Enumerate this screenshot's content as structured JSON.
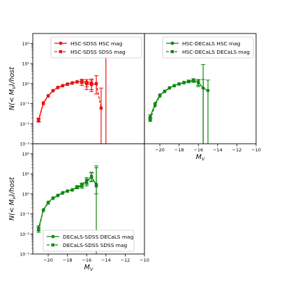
{
  "chart_data": [
    {
      "type": "line",
      "panel": "top-left",
      "xlabel": "",
      "ylabel": "N(< M_V)/host",
      "xlim": [
        -21.6,
        -10
      ],
      "ylim_log10": [
        -3,
        2.5
      ],
      "yscale": "log",
      "y_tick_labels": [
        "10⁻³",
        "10⁻²",
        "10⁻¹",
        "10⁰",
        "10¹",
        "10²"
      ],
      "x_tick_labels": [],
      "legend_position": "top-right",
      "series": [
        {
          "name": "HSC-SDSS HSC mag",
          "color": "#ee1111",
          "dash": "solid",
          "marker": "circle",
          "points": [
            {
              "x": -21.0,
              "y": 0.016,
              "lo": 0.013,
              "hi": 0.019
            },
            {
              "x": -20.5,
              "y": 0.11
            },
            {
              "x": -20.0,
              "y": 0.25
            },
            {
              "x": -19.5,
              "y": 0.45
            },
            {
              "x": -19.0,
              "y": 0.65
            },
            {
              "x": -18.5,
              "y": 0.8
            },
            {
              "x": -18.0,
              "y": 0.95
            },
            {
              "x": -17.5,
              "y": 1.1
            },
            {
              "x": -17.0,
              "y": 1.25
            },
            {
              "x": -16.5,
              "y": 1.3,
              "lo": 1.0,
              "hi": 1.65
            },
            {
              "x": -16.0,
              "y": 1.2,
              "lo": 0.7,
              "hi": 1.6
            },
            {
              "x": -15.5,
              "y": 1.1,
              "lo": 0.5,
              "hi": 1.7
            }
          ]
        },
        {
          "name": "HSC-SDSS SDSS mag",
          "color": "#ee1111",
          "dash": "dashed",
          "marker": "square",
          "points": [
            {
              "x": -21.0,
              "y": 0.014,
              "lo": 0.012,
              "hi": 0.018
            },
            {
              "x": -20.5,
              "y": 0.1
            },
            {
              "x": -20.0,
              "y": 0.24
            },
            {
              "x": -19.5,
              "y": 0.44
            },
            {
              "x": -19.0,
              "y": 0.63
            },
            {
              "x": -18.5,
              "y": 0.78
            },
            {
              "x": -18.0,
              "y": 0.92
            },
            {
              "x": -17.5,
              "y": 1.05
            },
            {
              "x": -17.0,
              "y": 1.2
            },
            {
              "x": -16.5,
              "y": 1.15,
              "lo": 0.8,
              "hi": 1.5
            },
            {
              "x": -16.0,
              "y": 1.0,
              "lo": 0.5,
              "hi": 1.6
            },
            {
              "x": -15.5,
              "y": 0.9,
              "lo": 0.4,
              "hi": 1.5
            },
            {
              "x": -15.0,
              "y": 1.0,
              "lo": 0.3,
              "hi": 2.5
            },
            {
              "x": -14.5,
              "y": 0.06,
              "lo": 0.001,
              "hi": 0.6
            },
            {
              "x": -14.0,
              "y": 0.001,
              "lo": 0.001,
              "hi": 60
            }
          ]
        }
      ]
    },
    {
      "type": "line",
      "panel": "top-right",
      "xlabel": "M_V",
      "ylabel": "",
      "xlim": [
        -21.6,
        -10
      ],
      "ylim_log10": [
        -3,
        2.5
      ],
      "yscale": "log",
      "x_tick_labels": [
        "−20",
        "−18",
        "−16",
        "−14",
        "−12",
        "−10"
      ],
      "x_ticks": [
        -20,
        -18,
        -16,
        -14,
        -12,
        -10
      ],
      "legend_position": "top-right",
      "series": [
        {
          "name": "HSC-DECaLS HSC mag",
          "color": "#118811",
          "dash": "solid",
          "marker": "circle",
          "points": [
            {
              "x": -21.0,
              "y": 0.022,
              "lo": 0.017,
              "hi": 0.028
            },
            {
              "x": -20.5,
              "y": 0.1
            },
            {
              "x": -20.0,
              "y": 0.27
            },
            {
              "x": -19.5,
              "y": 0.42
            },
            {
              "x": -19.0,
              "y": 0.62
            },
            {
              "x": -18.5,
              "y": 0.8
            },
            {
              "x": -18.0,
              "y": 0.97
            },
            {
              "x": -17.5,
              "y": 1.15
            },
            {
              "x": -17.0,
              "y": 1.3,
              "lo": 1.15,
              "hi": 1.5
            },
            {
              "x": -16.5,
              "y": 1.45,
              "lo": 1.2,
              "hi": 1.75
            },
            {
              "x": -16.0,
              "y": 1.2,
              "lo": 0.8,
              "hi": 1.6
            },
            {
              "x": -15.5,
              "y": 0.6,
              "lo": 0.001,
              "hi": 1.6
            },
            {
              "x": -15.0,
              "y": 0.45,
              "lo": 0.001,
              "hi": 1.5
            }
          ]
        },
        {
          "name": "HSC-DECaLS DECaLS mag",
          "color": "#118811",
          "dash": "dashed",
          "marker": "square",
          "points": [
            {
              "x": -21.0,
              "y": 0.016,
              "lo": 0.013,
              "hi": 0.02
            },
            {
              "x": -20.5,
              "y": 0.08
            },
            {
              "x": -20.0,
              "y": 0.24
            },
            {
              "x": -19.5,
              "y": 0.4
            },
            {
              "x": -19.0,
              "y": 0.6
            },
            {
              "x": -18.5,
              "y": 0.78
            },
            {
              "x": -18.0,
              "y": 0.95
            },
            {
              "x": -17.5,
              "y": 1.1
            },
            {
              "x": -17.0,
              "y": 1.25
            },
            {
              "x": -16.5,
              "y": 1.4,
              "lo": 1.15,
              "hi": 1.7
            },
            {
              "x": -16.0,
              "y": 1.1,
              "lo": 0.7,
              "hi": 1.5
            },
            {
              "x": -15.5,
              "y": 0.001,
              "lo": 0.001,
              "hi": 9
            }
          ]
        }
      ]
    },
    {
      "type": "line",
      "panel": "bottom-left",
      "xlabel": "M_V",
      "ylabel": "N(< M_V)/host",
      "xlim": [
        -21.6,
        -10
      ],
      "ylim_log10": [
        -3,
        2.5
      ],
      "yscale": "log",
      "y_tick_labels": [
        "10⁻³",
        "10⁻²",
        "10⁻¹",
        "10⁰",
        "10¹",
        "10²"
      ],
      "x_tick_labels": [
        "−20",
        "−18",
        "−16",
        "−14",
        "−12",
        "−10"
      ],
      "x_ticks": [
        -20,
        -18,
        -16,
        -14,
        -12,
        -10
      ],
      "legend_position": "bottom-center",
      "series": [
        {
          "name": "DECaLS-SDSS DECaLS mag",
          "color": "#118811",
          "dash": "solid",
          "marker": "circle",
          "points": [
            {
              "x": -21.0,
              "y": 0.02,
              "lo": 0.015,
              "hi": 0.026
            },
            {
              "x": -20.5,
              "y": 0.16
            },
            {
              "x": -20.0,
              "y": 0.38
            },
            {
              "x": -19.5,
              "y": 0.62
            },
            {
              "x": -19.0,
              "y": 0.85
            },
            {
              "x": -18.5,
              "y": 1.15
            },
            {
              "x": -18.0,
              "y": 1.4
            },
            {
              "x": -17.5,
              "y": 1.6
            },
            {
              "x": -17.0,
              "y": 2.2,
              "lo": 1.9,
              "hi": 2.6
            },
            {
              "x": -16.5,
              "y": 2.8,
              "lo": 2.2,
              "hi": 3.5
            },
            {
              "x": -16.0,
              "y": 4.5,
              "lo": 3.0,
              "hi": 6.5
            },
            {
              "x": -15.5,
              "y": 6.8,
              "lo": 4.0,
              "hi": 11
            },
            {
              "x": -15.0,
              "y": 3.0,
              "lo": 0.001,
              "hi": 20
            }
          ]
        },
        {
          "name": "DECaLS-SDSS SDSS mag",
          "color": "#118811",
          "dash": "dashed",
          "marker": "square",
          "points": [
            {
              "x": -21.0,
              "y": 0.016,
              "lo": 0.012,
              "hi": 0.021
            },
            {
              "x": -20.5,
              "y": 0.15
            },
            {
              "x": -20.0,
              "y": 0.35
            },
            {
              "x": -19.5,
              "y": 0.6
            },
            {
              "x": -19.0,
              "y": 0.82
            },
            {
              "x": -18.5,
              "y": 1.1
            },
            {
              "x": -18.0,
              "y": 1.35
            },
            {
              "x": -17.5,
              "y": 1.55
            },
            {
              "x": -17.0,
              "y": 2.1,
              "lo": 1.8,
              "hi": 2.5
            },
            {
              "x": -16.5,
              "y": 2.5,
              "lo": 1.9,
              "hi": 3.2
            },
            {
              "x": -16.0,
              "y": 3.8,
              "lo": 2.5,
              "hi": 5.5
            },
            {
              "x": -15.5,
              "y": 7.5,
              "lo": 4.5,
              "hi": 12
            },
            {
              "x": -15.0,
              "y": 2.5,
              "lo": 1.0,
              "hi": 25
            }
          ]
        }
      ]
    }
  ]
}
